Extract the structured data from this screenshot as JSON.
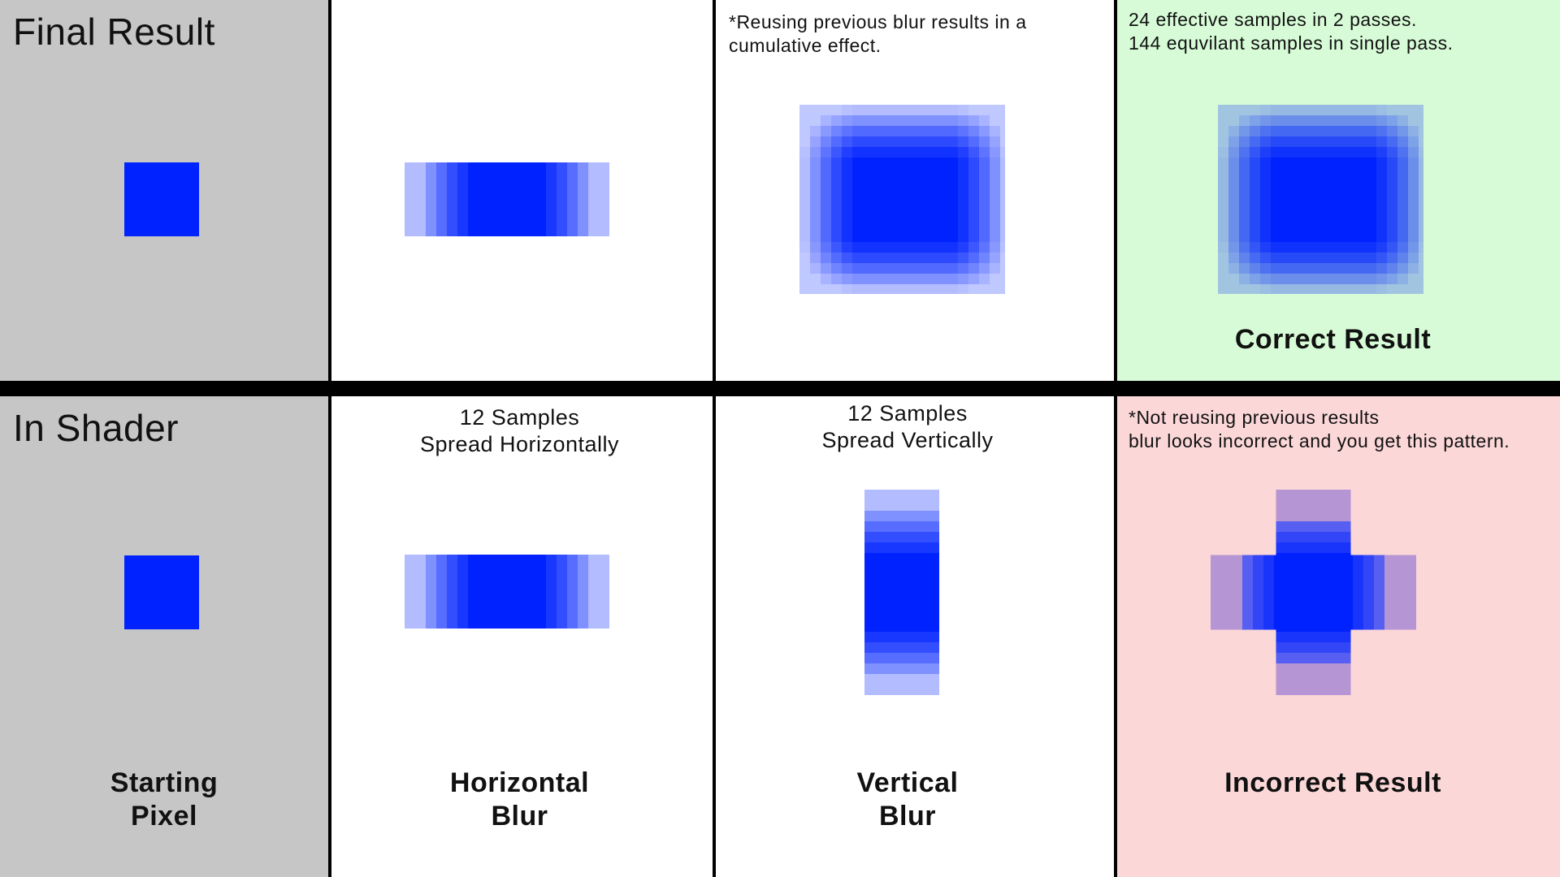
{
  "colors": {
    "blur_blue": "#0022ff",
    "blur_violet_tail": "#4a33cc",
    "start_background": "#c6c6c6",
    "pass_background": "#ffffff",
    "correct_background": "#d7fbd7",
    "incorrect_background": "#fcd7d8",
    "divider": "#000000"
  },
  "row_labels": {
    "top": "Final Result",
    "bottom": "In Shader"
  },
  "notes": {
    "cumulative": [
      "*Reusing previous blur results in a",
      "cumulative effect."
    ],
    "samples": [
      "24 effective samples in 2 passes.",
      "144 equvilant samples in single pass."
    ],
    "not_reusing": [
      "*Not reusing previous results",
      "blur looks incorrect and you get this pattern."
    ]
  },
  "captions": {
    "horizontal": [
      "12 Samples",
      "Spread Horizontally"
    ],
    "vertical": [
      "12 Samples",
      "Spread Vertically"
    ]
  },
  "titles": {
    "correct": "Correct Result",
    "starting": [
      "Starting",
      "Pixel"
    ],
    "horizontal": [
      "Horizontal",
      "Blur"
    ],
    "vertical": [
      "Vertical",
      "Blur"
    ],
    "incorrect": "Incorrect Result"
  },
  "blur": {
    "falloff_alpha": [
      1,
      1,
      0.9,
      0.8,
      0.66,
      0.5,
      0.3
    ]
  },
  "icons": {
    "start_pixel": "blue-pixel-square",
    "horizontal_blur": "horizontal-blur-strip",
    "vertical_blur": "vertical-blur-strip",
    "correct_blur": "blurred-square",
    "incorrect_blur": "cross-blur-pattern"
  }
}
